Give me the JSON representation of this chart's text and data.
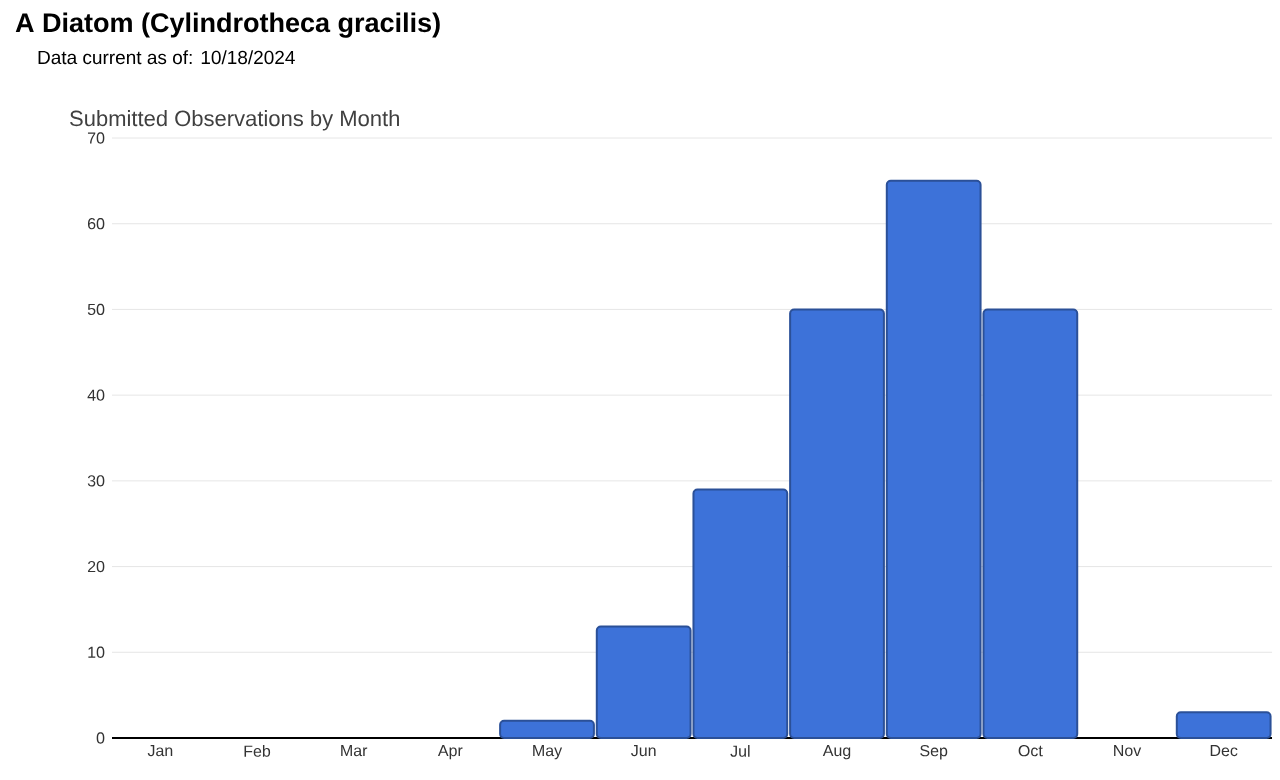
{
  "chart_data": {
    "type": "bar",
    "title": "A Diatom   (Cylindrotheca gracilis)",
    "subtitle": "Data current as of: 10/18/2024",
    "annotations": [
      "Submitted Observations by Month"
    ],
    "categories": [
      "Jan",
      "Feb",
      "Mar",
      "Apr",
      "May",
      "Jun",
      "Jul",
      "Aug",
      "Sep",
      "Oct",
      "Nov",
      "Dec"
    ],
    "values": [
      0,
      0,
      0,
      0,
      2,
      13,
      29,
      50,
      65,
      50,
      0,
      3
    ],
    "color": "#3d72d9",
    "ylim": [
      0,
      70
    ],
    "yticks": [
      0,
      10,
      20,
      30,
      40,
      50,
      60,
      70
    ],
    "grid": "y"
  }
}
